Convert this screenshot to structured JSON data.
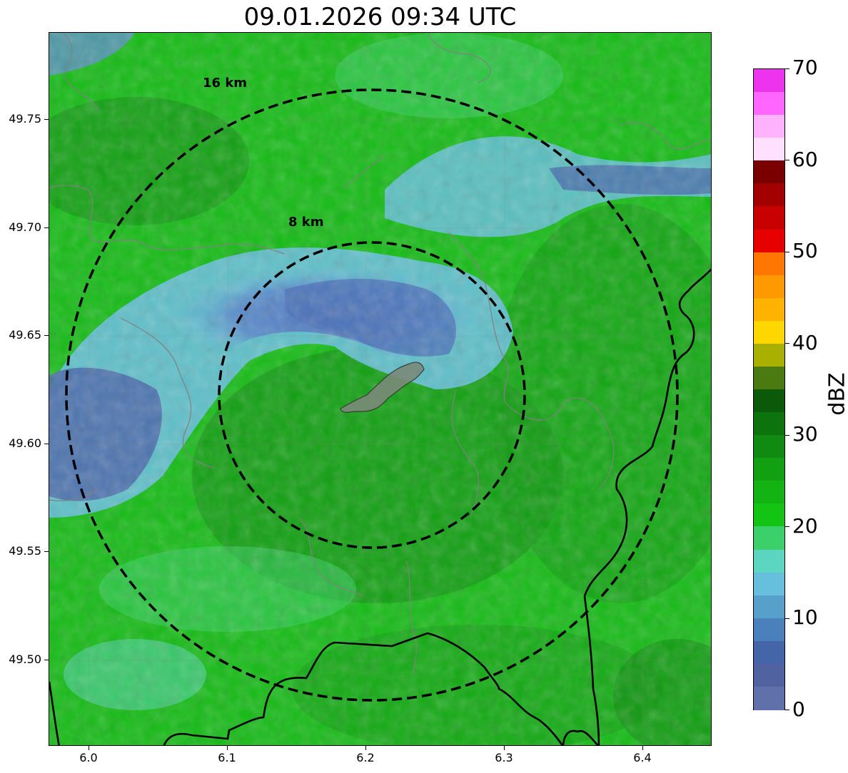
{
  "title": "09.01.2026 09:34 UTC",
  "y_axis": {
    "ticks": [
      "49.75",
      "49.70",
      "49.65",
      "49.60",
      "49.55",
      "49.50"
    ]
  },
  "x_axis": {
    "ticks": [
      "6.0",
      "6.1",
      "6.2",
      "6.3",
      "6.4"
    ]
  },
  "colorbar": {
    "unit": "dBZ",
    "labels": [
      "70",
      "60",
      "50",
      "40",
      "30",
      "20",
      "10",
      "0"
    ],
    "colors": [
      "#ee33ee",
      "#ff66ff",
      "#ffb3ff",
      "#ffe0ff",
      "#7a0000",
      "#a30000",
      "#c80000",
      "#e60000",
      "#ff7700",
      "#ff9900",
      "#ffb300",
      "#ffd700",
      "#aab000",
      "#4a7a10",
      "#0a5a0a",
      "#0d730d",
      "#108a10",
      "#11a011",
      "#12b312",
      "#14c414",
      "#3cd06a",
      "#5cd6c0",
      "#66c0dd",
      "#57a0cc",
      "#4a80bb",
      "#4466a8",
      "#50629f",
      "#6070aa"
    ]
  },
  "rings": [
    {
      "label": "16 km"
    },
    {
      "label": "8 km"
    }
  ],
  "colors": {
    "dashed_ring": "#000000",
    "border": "#000000",
    "city_fill": "#7a8a7a"
  }
}
